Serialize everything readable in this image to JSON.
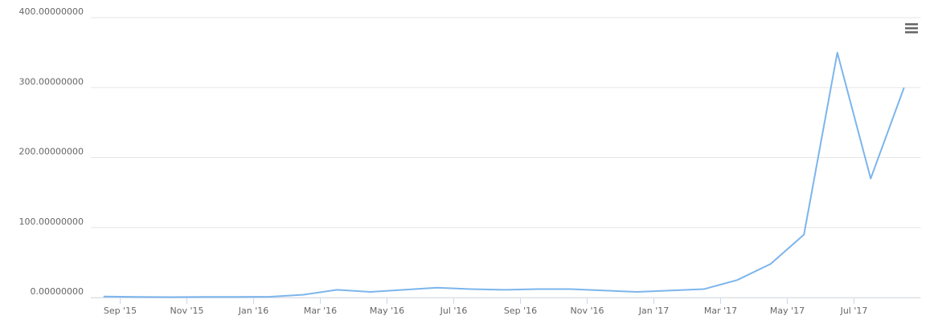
{
  "chart_data": {
    "type": "line",
    "x": [
      "2015-08",
      "2015-09",
      "2015-10",
      "2015-11",
      "2015-12",
      "2016-01",
      "2016-02",
      "2016-03",
      "2016-04",
      "2016-05",
      "2016-06",
      "2016-07",
      "2016-08",
      "2016-09",
      "2016-10",
      "2016-11",
      "2016-12",
      "2017-01",
      "2017-02",
      "2017-03",
      "2017-04",
      "2017-05",
      "2017-06",
      "2017-07",
      "2017-08"
    ],
    "values": [
      1.5,
      0.9,
      0.6,
      0.9,
      0.9,
      1.2,
      4,
      11,
      8,
      11,
      14,
      12,
      11,
      12,
      12,
      10,
      8,
      10,
      12,
      25,
      48,
      90,
      350,
      170,
      300
    ],
    "color": "#7cb5ec",
    "xlim": [
      "2015-08",
      "2017-08"
    ],
    "ylim": [
      0,
      400
    ],
    "yticks": [
      {
        "value": 0,
        "label": "0.00000000"
      },
      {
        "value": 100,
        "label": "100.00000000"
      },
      {
        "value": 200,
        "label": "200.00000000"
      },
      {
        "value": 300,
        "label": "300.00000000"
      },
      {
        "value": 400,
        "label": "400.00000000"
      }
    ],
    "xticks": [
      {
        "value": "2015-09",
        "label": "Sep '15"
      },
      {
        "value": "2015-11",
        "label": "Nov '15"
      },
      {
        "value": "2016-01",
        "label": "Jan '16"
      },
      {
        "value": "2016-03",
        "label": "Mar '16"
      },
      {
        "value": "2016-05",
        "label": "May '16"
      },
      {
        "value": "2016-07",
        "label": "Jul '16"
      },
      {
        "value": "2016-09",
        "label": "Sep '16"
      },
      {
        "value": "2016-11",
        "label": "Nov '16"
      },
      {
        "value": "2017-01",
        "label": "Jan '17"
      },
      {
        "value": "2017-03",
        "label": "Mar '17"
      },
      {
        "value": "2017-05",
        "label": "May '17"
      },
      {
        "value": "2017-07",
        "label": "Jul '17"
      }
    ],
    "grid": true
  }
}
